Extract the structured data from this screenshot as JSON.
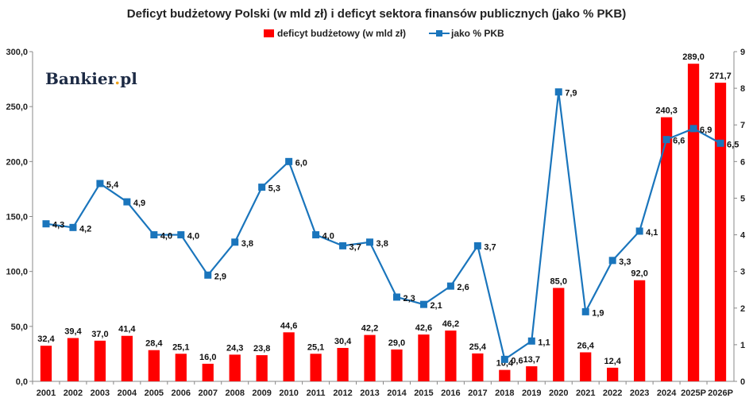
{
  "logo": {
    "main": "Bankier",
    "dot": ".",
    "suffix": "pl"
  },
  "chart_data": {
    "type": "bar",
    "title": "Deficyt budżetowy Polski (w mld zł) i deficyt sektora finansów publicznych (jako % PKB)",
    "categories": [
      "2001",
      "2002",
      "2003",
      "2004",
      "2005",
      "2006",
      "2007",
      "2008",
      "2009",
      "2010",
      "2011",
      "2012",
      "2013",
      "2014",
      "2015",
      "2016",
      "2017",
      "2018",
      "2019",
      "2020",
      "2021",
      "2022",
      "2023",
      "2024",
      "2025P",
      "2026P"
    ],
    "series": [
      {
        "name": "deficyt budżetowy (w mld zł)",
        "type": "bar",
        "axis": "left",
        "color": "#ff0000",
        "values": [
          32.4,
          39.4,
          37.0,
          41.4,
          28.4,
          25.1,
          16.0,
          24.3,
          23.8,
          44.6,
          25.1,
          30.4,
          42.2,
          29.0,
          42.6,
          46.2,
          25.4,
          10.4,
          13.7,
          85.0,
          26.4,
          12.4,
          92.0,
          240.3,
          289.0,
          271.7
        ],
        "labels": [
          "32,4",
          "39,4",
          "37,0",
          "41,4",
          "28,4",
          "25,1",
          "16,0",
          "24,3",
          "23,8",
          "44,6",
          "25,1",
          "30,4",
          "42,2",
          "29,0",
          "42,6",
          "46,2",
          "25,4",
          "10,4",
          "13,7",
          "85,0",
          "26,4",
          "12,4",
          "92,0",
          "240,3",
          "289,0",
          "271,7"
        ]
      },
      {
        "name": "jako % PKB",
        "type": "line",
        "axis": "right",
        "color": "#1a75bc",
        "values": [
          4.3,
          4.2,
          5.4,
          4.9,
          4.0,
          4.0,
          2.9,
          3.8,
          5.3,
          6.0,
          4.0,
          3.7,
          3.8,
          2.3,
          2.1,
          2.6,
          3.7,
          0.6,
          1.1,
          7.9,
          1.9,
          3.3,
          4.1,
          6.6,
          6.9,
          6.5
        ],
        "labels": [
          "4,3",
          "4,2",
          "5,4",
          "4,9",
          "4,0",
          "4,0",
          "2,9",
          "3,8",
          "5,3",
          "6,0",
          "4,0",
          "3,7",
          "3,8",
          "2,3",
          "2,1",
          "2,6",
          "3,7",
          "0,6",
          "1,1",
          "7,9",
          "1,9",
          "3,3",
          "4,1",
          "6,6",
          "6,9",
          "6,5"
        ]
      }
    ],
    "y_left": {
      "min": 0,
      "max": 300,
      "step": 50,
      "tick_labels": [
        "0,0",
        "50,0",
        "100,0",
        "150,0",
        "200,0",
        "250,0",
        "300,0"
      ]
    },
    "y_right": {
      "min": 0,
      "max": 9,
      "step": 1,
      "tick_labels": [
        "0",
        "1",
        "2",
        "3",
        "4",
        "5",
        "6",
        "7",
        "8",
        "9"
      ]
    },
    "grid": false,
    "legend_position": "top-center"
  }
}
